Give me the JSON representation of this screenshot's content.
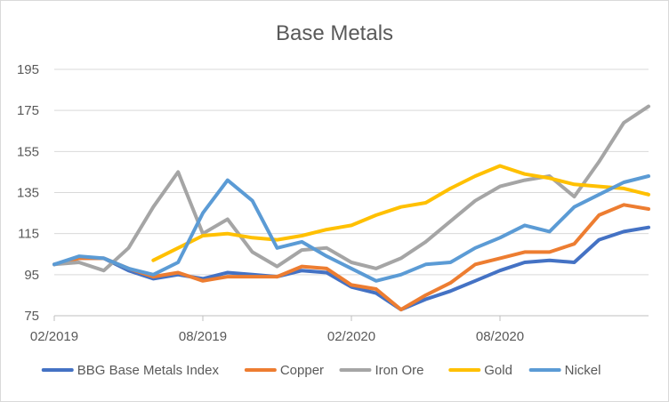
{
  "chart_data": {
    "type": "line",
    "title": "Base Metals",
    "xlabel": "",
    "ylabel": "",
    "ylim": [
      75,
      195
    ],
    "yticks": [
      75,
      95,
      115,
      135,
      155,
      175,
      195
    ],
    "xlim": [
      "2019-02",
      "2021-02"
    ],
    "xticks": [
      {
        "date": "2019-02",
        "label": "02/2019"
      },
      {
        "date": "2019-08",
        "label": "08/2019"
      },
      {
        "date": "2020-02",
        "label": "02/2020"
      },
      {
        "date": "2020-08",
        "label": "08/2020"
      }
    ],
    "grid": true,
    "legend_position": "bottom",
    "x": [
      "2019-02",
      "2019-03",
      "2019-04",
      "2019-05",
      "2019-06",
      "2019-07",
      "2019-08",
      "2019-09",
      "2019-10",
      "2019-11",
      "2019-12",
      "2020-01",
      "2020-02",
      "2020-03",
      "2020-04",
      "2020-05",
      "2020-06",
      "2020-07",
      "2020-08",
      "2020-09",
      "2020-10",
      "2020-11",
      "2020-12",
      "2021-01",
      "2021-02"
    ],
    "series": [
      {
        "name": "BBG Base Metals Index",
        "color": "#4472C4",
        "values": [
          100,
          103,
          103,
          97,
          93,
          95,
          93,
          96,
          95,
          94,
          97,
          96,
          89,
          86,
          78,
          83,
          87,
          92,
          97,
          101,
          102,
          101,
          112,
          116,
          118
        ]
      },
      {
        "name": "Copper",
        "color": "#ED7D31",
        "values": [
          100,
          103,
          103,
          98,
          94,
          96,
          92,
          94,
          94,
          94,
          99,
          98,
          90,
          88,
          78,
          85,
          91,
          100,
          103,
          106,
          106,
          110,
          124,
          129,
          127
        ]
      },
      {
        "name": "Iron Ore",
        "color": "#A5A5A5",
        "values": [
          100,
          101,
          97,
          108,
          128,
          145,
          115,
          122,
          106,
          99,
          107,
          108,
          101,
          98,
          103,
          111,
          121,
          131,
          138,
          141,
          143,
          133,
          150,
          169,
          177
        ]
      },
      {
        "name": "Gold",
        "color": "#FFC000",
        "values": [
          null,
          null,
          null,
          null,
          102,
          108,
          114,
          115,
          113,
          112,
          114,
          117,
          119,
          124,
          128,
          130,
          137,
          143,
          148,
          144,
          142,
          139,
          138,
          137,
          134
        ]
      },
      {
        "name": "Nickel",
        "color": "#5B9BD5",
        "values": [
          100,
          104,
          103,
          98,
          95,
          101,
          125,
          141,
          131,
          108,
          111,
          104,
          98,
          92,
          95,
          100,
          101,
          108,
          113,
          119,
          116,
          128,
          134,
          140,
          143
        ]
      }
    ]
  }
}
